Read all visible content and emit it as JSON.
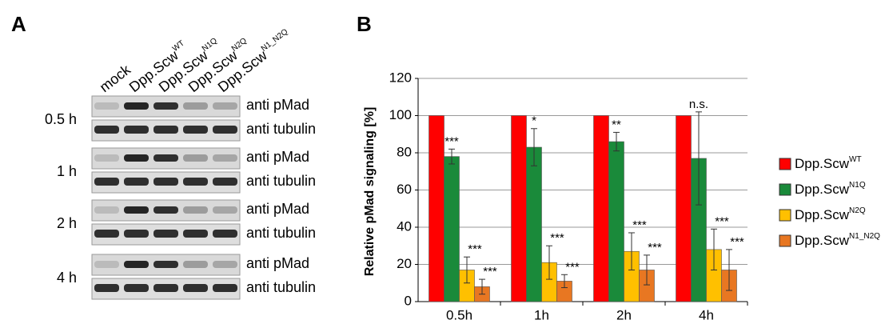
{
  "panel_labels": [
    "A",
    "B"
  ],
  "blot": {
    "lanes": [
      {
        "name": "mock"
      },
      {
        "name": "Dpp.Scw",
        "superscript": "WT"
      },
      {
        "name": "Dpp.Scw",
        "superscript": "N1Q"
      },
      {
        "name": "Dpp.Scw",
        "superscript": "N2Q"
      },
      {
        "name": "Dpp.Scw",
        "superscript": "N1_N2Q"
      }
    ],
    "timepoints": [
      "0.5 h",
      "1 h",
      "2 h",
      "4 h"
    ],
    "antibodies": [
      "anti pMad",
      "anti tubulin"
    ]
  },
  "chart_data": {
    "type": "bar",
    "ylabel": "Relative pMad signaling [%]",
    "categories": [
      "0.5h",
      "1h",
      "2h",
      "4h"
    ],
    "series": [
      {
        "name": "Dpp.Scw",
        "superscript": "WT",
        "color": "#ff0000",
        "values": [
          100,
          100,
          100,
          100
        ]
      },
      {
        "name": "Dpp.Scw",
        "superscript": "N1Q",
        "color": "#1a8a3a",
        "values": [
          78,
          83,
          86,
          77
        ],
        "errors": [
          4,
          10,
          5,
          25
        ],
        "significance": [
          "***",
          "*",
          "**",
          "n.s."
        ]
      },
      {
        "name": "Dpp.Scw",
        "superscript": "N2Q",
        "color": "#ffc000",
        "values": [
          17,
          21,
          27,
          28
        ],
        "errors": [
          7,
          9,
          10,
          11
        ],
        "significance": [
          "***",
          "***",
          "***",
          "***"
        ]
      },
      {
        "name": "Dpp.Scw",
        "superscript": "N1_N2Q",
        "color": "#e87722",
        "values": [
          8,
          11,
          17,
          17
        ],
        "errors": [
          4,
          3.5,
          8,
          11
        ],
        "significance": [
          "***",
          "***",
          "***",
          "***"
        ]
      }
    ],
    "ylim": [
      0,
      120
    ],
    "yticks": [
      0,
      20,
      40,
      60,
      80,
      100,
      120
    ],
    "grid": true
  }
}
